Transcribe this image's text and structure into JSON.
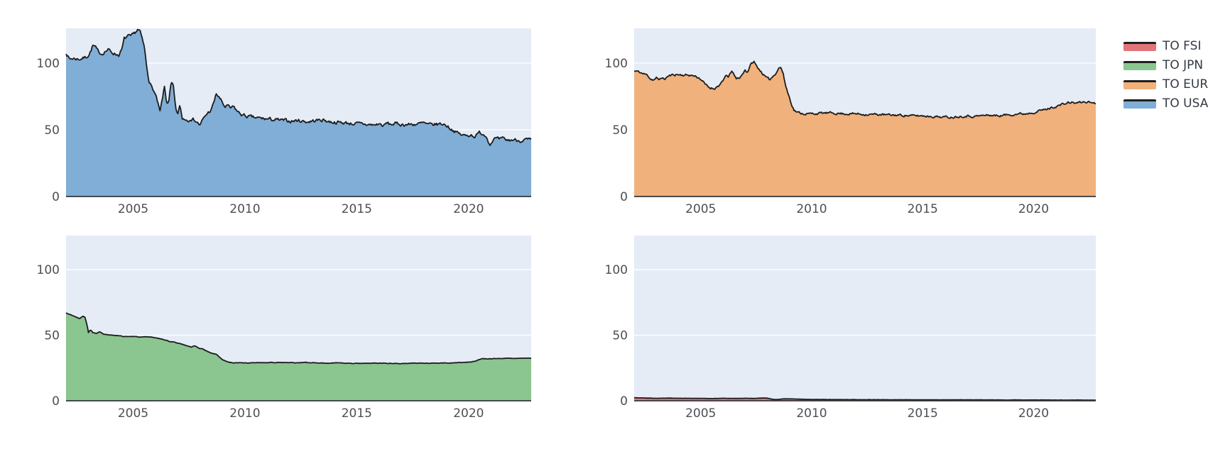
{
  "page": {
    "background": "#ffffff",
    "plot_background": "#e5ecf6",
    "grid_color": "#ffffff",
    "axis_line_color": "#32363c",
    "trace_line_color": "#1c1c1c",
    "tick_label_color": "#4c4f54"
  },
  "axes": {
    "xlim": [
      2002.0,
      2022.8
    ],
    "ylim": [
      0,
      126
    ],
    "x_ticks": [
      2005,
      2010,
      2015,
      2020
    ],
    "y_ticks": [
      0,
      50,
      100
    ]
  },
  "legend": {
    "entries": [
      {
        "label": "TO FSI",
        "fill": "#e0757c"
      },
      {
        "label": "TO JPN",
        "fill": "#8bc58f"
      },
      {
        "label": "TO EUR",
        "fill": "#f0b17c"
      },
      {
        "label": "TO USA",
        "fill": "#80aed6"
      }
    ]
  },
  "chart_data": [
    {
      "type": "area",
      "name": "TO USA",
      "position": "top-left",
      "fill": "#80aed6",
      "x_range": [
        2002.0,
        2022.8
      ],
      "y_range": [
        0,
        126
      ],
      "jitter": 1.1,
      "seed": 7,
      "points": [
        [
          2002.0,
          108
        ],
        [
          2002.15,
          103
        ],
        [
          2002.3,
          103.5
        ],
        [
          2002.6,
          103
        ],
        [
          2002.9,
          104.5
        ],
        [
          2003.05,
          107
        ],
        [
          2003.2,
          113
        ],
        [
          2003.3,
          112
        ],
        [
          2003.45,
          108
        ],
        [
          2003.6,
          107
        ],
        [
          2003.75,
          109
        ],
        [
          2003.9,
          110
        ],
        [
          2004.05,
          108
        ],
        [
          2004.2,
          107
        ],
        [
          2004.35,
          106
        ],
        [
          2004.5,
          110
        ],
        [
          2004.6,
          118
        ],
        [
          2004.75,
          120
        ],
        [
          2004.9,
          119.5
        ],
        [
          2005.0,
          121
        ],
        [
          2005.1,
          123
        ],
        [
          2005.2,
          125
        ],
        [
          2005.3,
          124
        ],
        [
          2005.4,
          118
        ],
        [
          2005.5,
          112
        ],
        [
          2005.6,
          98
        ],
        [
          2005.7,
          88
        ],
        [
          2005.8,
          83
        ],
        [
          2005.9,
          80
        ],
        [
          2006.0,
          76
        ],
        [
          2006.1,
          70
        ],
        [
          2006.2,
          63
        ],
        [
          2006.3,
          72
        ],
        [
          2006.4,
          82
        ],
        [
          2006.5,
          70
        ],
        [
          2006.6,
          72
        ],
        [
          2006.7,
          85
        ],
        [
          2006.8,
          82
        ],
        [
          2006.9,
          65
        ],
        [
          2007.0,
          62
        ],
        [
          2007.1,
          68
        ],
        [
          2007.2,
          58
        ],
        [
          2007.3,
          58.5
        ],
        [
          2007.45,
          57
        ],
        [
          2007.55,
          59
        ],
        [
          2007.65,
          58
        ],
        [
          2007.75,
          57.5
        ],
        [
          2007.9,
          55
        ],
        [
          2008.0,
          53.5
        ],
        [
          2008.1,
          57
        ],
        [
          2008.3,
          62
        ],
        [
          2008.5,
          65
        ],
        [
          2008.6,
          70
        ],
        [
          2008.72,
          77
        ],
        [
          2008.85,
          74
        ],
        [
          2009.0,
          70
        ],
        [
          2009.1,
          67
        ],
        [
          2009.2,
          68
        ],
        [
          2009.35,
          66
        ],
        [
          2009.5,
          67
        ],
        [
          2009.7,
          63
        ],
        [
          2009.9,
          61
        ],
        [
          2010.1,
          60
        ],
        [
          2010.4,
          59
        ],
        [
          2010.7,
          58.5
        ],
        [
          2011.0,
          58
        ],
        [
          2011.3,
          57.5
        ],
        [
          2011.6,
          57
        ],
        [
          2012.0,
          56.5
        ],
        [
          2012.4,
          57
        ],
        [
          2012.8,
          56
        ],
        [
          2013.2,
          57
        ],
        [
          2013.5,
          57.5
        ],
        [
          2013.8,
          56
        ],
        [
          2014.2,
          55.5
        ],
        [
          2014.6,
          55
        ],
        [
          2015.0,
          54.5
        ],
        [
          2015.4,
          54
        ],
        [
          2015.8,
          53.5
        ],
        [
          2016.0,
          54.5
        ],
        [
          2016.2,
          52.8
        ],
        [
          2016.35,
          55
        ],
        [
          2016.5,
          54
        ],
        [
          2016.7,
          54.5
        ],
        [
          2017.0,
          54
        ],
        [
          2017.4,
          54
        ],
        [
          2017.8,
          54.5
        ],
        [
          2018.0,
          55
        ],
        [
          2018.2,
          53.5
        ],
        [
          2018.5,
          54
        ],
        [
          2018.8,
          54.5
        ],
        [
          2019.0,
          53.5
        ],
        [
          2019.2,
          51
        ],
        [
          2019.45,
          48
        ],
        [
          2019.7,
          46
        ],
        [
          2019.9,
          45.5
        ],
        [
          2020.1,
          46.5
        ],
        [
          2020.3,
          45
        ],
        [
          2020.5,
          48
        ],
        [
          2020.7,
          46.5
        ],
        [
          2020.85,
          44
        ],
        [
          2020.95,
          38.5
        ],
        [
          2021.05,
          42
        ],
        [
          2021.2,
          43.5
        ],
        [
          2021.35,
          42.5
        ],
        [
          2021.55,
          43
        ],
        [
          2021.75,
          42
        ],
        [
          2022.0,
          42.5
        ],
        [
          2022.3,
          42
        ],
        [
          2022.6,
          42.5
        ],
        [
          2022.8,
          42
        ]
      ]
    },
    {
      "type": "area",
      "name": "TO EUR",
      "position": "top-right",
      "fill": "#f0b17c",
      "x_range": [
        2002.0,
        2022.8
      ],
      "y_range": [
        0,
        126
      ],
      "jitter": 0.7,
      "seed": 11,
      "points": [
        [
          2002.0,
          94
        ],
        [
          2002.2,
          93.5
        ],
        [
          2002.4,
          92
        ],
        [
          2002.6,
          91
        ],
        [
          2002.75,
          88
        ],
        [
          2002.9,
          87.5
        ],
        [
          2003.0,
          89
        ],
        [
          2003.1,
          87
        ],
        [
          2003.25,
          89.5
        ],
        [
          2003.35,
          87.5
        ],
        [
          2003.5,
          90
        ],
        [
          2003.7,
          91
        ],
        [
          2003.9,
          91.5
        ],
        [
          2004.2,
          91
        ],
        [
          2004.5,
          91
        ],
        [
          2004.8,
          90
        ],
        [
          2005.0,
          88
        ],
        [
          2005.2,
          84
        ],
        [
          2005.4,
          81.5
        ],
        [
          2005.6,
          81
        ],
        [
          2005.8,
          83
        ],
        [
          2006.0,
          86
        ],
        [
          2006.15,
          91.5
        ],
        [
          2006.25,
          89
        ],
        [
          2006.4,
          94.5
        ],
        [
          2006.5,
          91
        ],
        [
          2006.6,
          88
        ],
        [
          2006.75,
          89
        ],
        [
          2006.9,
          92
        ],
        [
          2007.0,
          95
        ],
        [
          2007.1,
          93
        ],
        [
          2007.2,
          97
        ],
        [
          2007.3,
          100
        ],
        [
          2007.4,
          101
        ],
        [
          2007.5,
          98
        ],
        [
          2007.65,
          95
        ],
        [
          2007.8,
          92
        ],
        [
          2007.95,
          89
        ],
        [
          2008.1,
          87.5
        ],
        [
          2008.25,
          90
        ],
        [
          2008.4,
          93
        ],
        [
          2008.5,
          96
        ],
        [
          2008.6,
          97
        ],
        [
          2008.7,
          93
        ],
        [
          2008.8,
          85
        ],
        [
          2008.9,
          79
        ],
        [
          2009.0,
          74
        ],
        [
          2009.1,
          69
        ],
        [
          2009.2,
          65
        ],
        [
          2009.35,
          63
        ],
        [
          2009.5,
          62.5
        ],
        [
          2009.7,
          62
        ],
        [
          2010.0,
          62
        ],
        [
          2010.5,
          62.5
        ],
        [
          2011.0,
          62.5
        ],
        [
          2011.5,
          62
        ],
        [
          2012.0,
          62
        ],
        [
          2012.5,
          61.5
        ],
        [
          2013.0,
          61.5
        ],
        [
          2013.5,
          61
        ],
        [
          2014.0,
          61
        ],
        [
          2014.5,
          60.5
        ],
        [
          2015.0,
          60.5
        ],
        [
          2015.5,
          60
        ],
        [
          2016.0,
          59.5
        ],
        [
          2016.3,
          59.5
        ],
        [
          2016.6,
          60
        ],
        [
          2017.0,
          60.5
        ],
        [
          2017.3,
          60
        ],
        [
          2017.6,
          60.5
        ],
        [
          2018.0,
          61
        ],
        [
          2018.4,
          60.5
        ],
        [
          2018.7,
          61
        ],
        [
          2019.0,
          61.5
        ],
        [
          2019.3,
          62
        ],
        [
          2019.6,
          62
        ],
        [
          2019.9,
          63
        ],
        [
          2020.1,
          63.5
        ],
        [
          2020.3,
          64.5
        ],
        [
          2020.5,
          65
        ],
        [
          2020.7,
          66
        ],
        [
          2020.9,
          67
        ],
        [
          2021.1,
          68
        ],
        [
          2021.3,
          69
        ],
        [
          2021.5,
          70
        ],
        [
          2021.7,
          70.5
        ],
        [
          2021.9,
          70
        ],
        [
          2022.1,
          70.5
        ],
        [
          2022.35,
          71
        ],
        [
          2022.6,
          70.5
        ],
        [
          2022.8,
          70
        ]
      ]
    },
    {
      "type": "area",
      "name": "TO JPN",
      "position": "bottom-left",
      "fill": "#8bc58f",
      "x_range": [
        2002.0,
        2022.8
      ],
      "y_range": [
        0,
        126
      ],
      "jitter": 0.18,
      "seed": 3,
      "points": [
        [
          2002.0,
          67
        ],
        [
          2002.15,
          66
        ],
        [
          2002.3,
          65
        ],
        [
          2002.45,
          64
        ],
        [
          2002.6,
          62.5
        ],
        [
          2002.75,
          64.5
        ],
        [
          2002.85,
          63.5
        ],
        [
          2002.95,
          57
        ],
        [
          2003.0,
          52
        ],
        [
          2003.1,
          54
        ],
        [
          2003.2,
          52
        ],
        [
          2003.35,
          51.5
        ],
        [
          2003.5,
          52.5
        ],
        [
          2003.65,
          51
        ],
        [
          2003.8,
          50.5
        ],
        [
          2004.0,
          50
        ],
        [
          2004.3,
          49.5
        ],
        [
          2004.6,
          49
        ],
        [
          2005.0,
          49
        ],
        [
          2005.4,
          48.5
        ],
        [
          2005.8,
          48.5
        ],
        [
          2006.0,
          48
        ],
        [
          2006.3,
          47
        ],
        [
          2006.5,
          46
        ],
        [
          2006.7,
          45
        ],
        [
          2006.9,
          44.5
        ],
        [
          2007.0,
          44
        ],
        [
          2007.2,
          43
        ],
        [
          2007.4,
          42
        ],
        [
          2007.6,
          41
        ],
        [
          2007.75,
          42
        ],
        [
          2007.9,
          40.5
        ],
        [
          2008.1,
          39.5
        ],
        [
          2008.3,
          38
        ],
        [
          2008.5,
          36.5
        ],
        [
          2008.75,
          35
        ],
        [
          2008.95,
          32
        ],
        [
          2009.1,
          30.5
        ],
        [
          2009.3,
          29.3
        ],
        [
          2009.5,
          29
        ],
        [
          2009.8,
          28.8
        ],
        [
          2010.0,
          28.8
        ],
        [
          2010.5,
          29
        ],
        [
          2011.0,
          29
        ],
        [
          2011.5,
          29.2
        ],
        [
          2012.0,
          29
        ],
        [
          2012.5,
          29
        ],
        [
          2013.0,
          29
        ],
        [
          2013.5,
          28.8
        ],
        [
          2014.0,
          28.8
        ],
        [
          2014.5,
          28.6
        ],
        [
          2015.0,
          28.5
        ],
        [
          2015.5,
          28.6
        ],
        [
          2016.0,
          28.8
        ],
        [
          2016.5,
          28.6
        ],
        [
          2017.0,
          28.5
        ],
        [
          2017.5,
          28.6
        ],
        [
          2018.0,
          28.6
        ],
        [
          2018.5,
          28.7
        ],
        [
          2019.0,
          28.8
        ],
        [
          2019.4,
          29
        ],
        [
          2019.8,
          29.3
        ],
        [
          2020.1,
          29.5
        ],
        [
          2020.3,
          30
        ],
        [
          2020.45,
          31.5
        ],
        [
          2020.6,
          32
        ],
        [
          2021.0,
          32
        ],
        [
          2021.4,
          32.2
        ],
        [
          2021.8,
          32.4
        ],
        [
          2022.2,
          32.5
        ],
        [
          2022.5,
          32.4
        ],
        [
          2022.8,
          32.3
        ]
      ]
    },
    {
      "type": "area",
      "name": "TO FSI",
      "position": "bottom-right",
      "fill": "#e0757c",
      "x_range": [
        2002.0,
        2022.8
      ],
      "y_range": [
        0,
        126
      ],
      "jitter": 0.06,
      "seed": 5,
      "points": [
        [
          2002.0,
          2.3
        ],
        [
          2002.5,
          2.1
        ],
        [
          2003.0,
          1.9
        ],
        [
          2003.5,
          2.0
        ],
        [
          2004.0,
          1.9
        ],
        [
          2004.5,
          1.9
        ],
        [
          2005.0,
          1.8
        ],
        [
          2005.5,
          1.7
        ],
        [
          2006.0,
          1.9
        ],
        [
          2006.5,
          1.8
        ],
        [
          2007.0,
          1.9
        ],
        [
          2007.5,
          1.8
        ],
        [
          2007.8,
          2.2
        ],
        [
          2008.0,
          2.0
        ],
        [
          2008.2,
          1.2
        ],
        [
          2008.4,
          0.9
        ],
        [
          2008.7,
          1.4
        ],
        [
          2009.0,
          1.5
        ],
        [
          2009.5,
          1.2
        ],
        [
          2010.0,
          1.0
        ],
        [
          2011.0,
          0.9
        ],
        [
          2012.0,
          0.85
        ],
        [
          2013.0,
          0.8
        ],
        [
          2014.0,
          0.8
        ],
        [
          2015.0,
          0.75
        ],
        [
          2016.0,
          0.7
        ],
        [
          2017.0,
          0.7
        ],
        [
          2018.0,
          0.65
        ],
        [
          2019.0,
          0.6
        ],
        [
          2020.0,
          0.6
        ],
        [
          2021.0,
          0.55
        ],
        [
          2022.0,
          0.5
        ],
        [
          2022.8,
          0.5
        ]
      ]
    }
  ]
}
